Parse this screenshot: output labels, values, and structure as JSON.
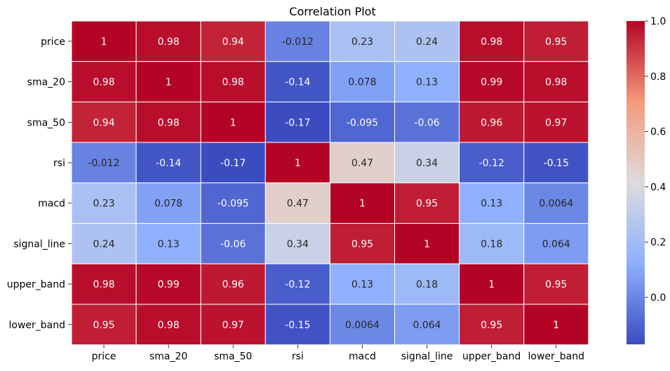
{
  "chart_data": {
    "type": "heatmap",
    "title": "Correlation Plot",
    "xlabel": "",
    "ylabel": "",
    "x_categories": [
      "price",
      "sma_20",
      "sma_50",
      "rsi",
      "macd",
      "signal_line",
      "upper_band",
      "lower_band"
    ],
    "y_categories": [
      "price",
      "sma_20",
      "sma_50",
      "rsi",
      "macd",
      "signal_line",
      "upper_band",
      "lower_band"
    ],
    "values": [
      [
        1,
        0.98,
        0.94,
        -0.012,
        0.23,
        0.24,
        0.98,
        0.95
      ],
      [
        0.98,
        1,
        0.98,
        -0.14,
        0.078,
        0.13,
        0.99,
        0.98
      ],
      [
        0.94,
        0.98,
        1,
        -0.17,
        -0.095,
        -0.06,
        0.96,
        0.97
      ],
      [
        -0.012,
        -0.14,
        -0.17,
        1,
        0.47,
        0.34,
        -0.12,
        -0.15
      ],
      [
        0.23,
        0.078,
        -0.095,
        0.47,
        1,
        0.95,
        0.13,
        0.0064
      ],
      [
        0.24,
        0.13,
        -0.06,
        0.34,
        0.95,
        1,
        0.18,
        0.064
      ],
      [
        0.98,
        0.99,
        0.96,
        -0.12,
        0.13,
        0.18,
        1,
        0.95
      ],
      [
        0.95,
        0.98,
        0.97,
        -0.15,
        0.0064,
        0.064,
        0.95,
        1
      ]
    ],
    "labels": [
      [
        "1",
        "0.98",
        "0.94",
        "-0.012",
        "0.23",
        "0.24",
        "0.98",
        "0.95"
      ],
      [
        "0.98",
        "1",
        "0.98",
        "-0.14",
        "0.078",
        "0.13",
        "0.99",
        "0.98"
      ],
      [
        "0.94",
        "0.98",
        "1",
        "-0.17",
        "-0.095",
        "-0.06",
        "0.96",
        "0.97"
      ],
      [
        "-0.012",
        "-0.14",
        "-0.17",
        "1",
        "0.47",
        "0.34",
        "-0.12",
        "-0.15"
      ],
      [
        "0.23",
        "0.078",
        "-0.095",
        "0.47",
        "1",
        "0.95",
        "0.13",
        "0.0064"
      ],
      [
        "0.24",
        "0.13",
        "-0.06",
        "0.34",
        "0.95",
        "1",
        "0.18",
        "0.064"
      ],
      [
        "0.98",
        "0.99",
        "0.96",
        "-0.12",
        "0.13",
        "0.18",
        "1",
        "0.95"
      ],
      [
        "0.95",
        "0.98",
        "0.97",
        "-0.15",
        "0.0064",
        "0.064",
        "0.95",
        "1"
      ]
    ],
    "colormap": "coolwarm",
    "colormap_stops": [
      "#3b4cc0",
      "#8db0fe",
      "#dddcdc",
      "#f49a7b",
      "#b40426"
    ],
    "vmin": -0.17,
    "vmax": 1,
    "colorbar": {
      "ticks": [
        0.0,
        0.2,
        0.4,
        0.6,
        0.8,
        1.0
      ],
      "tick_labels": [
        "0.0",
        "0.2",
        "0.4",
        "0.6",
        "0.8",
        "1.0"
      ]
    },
    "grid": false
  }
}
